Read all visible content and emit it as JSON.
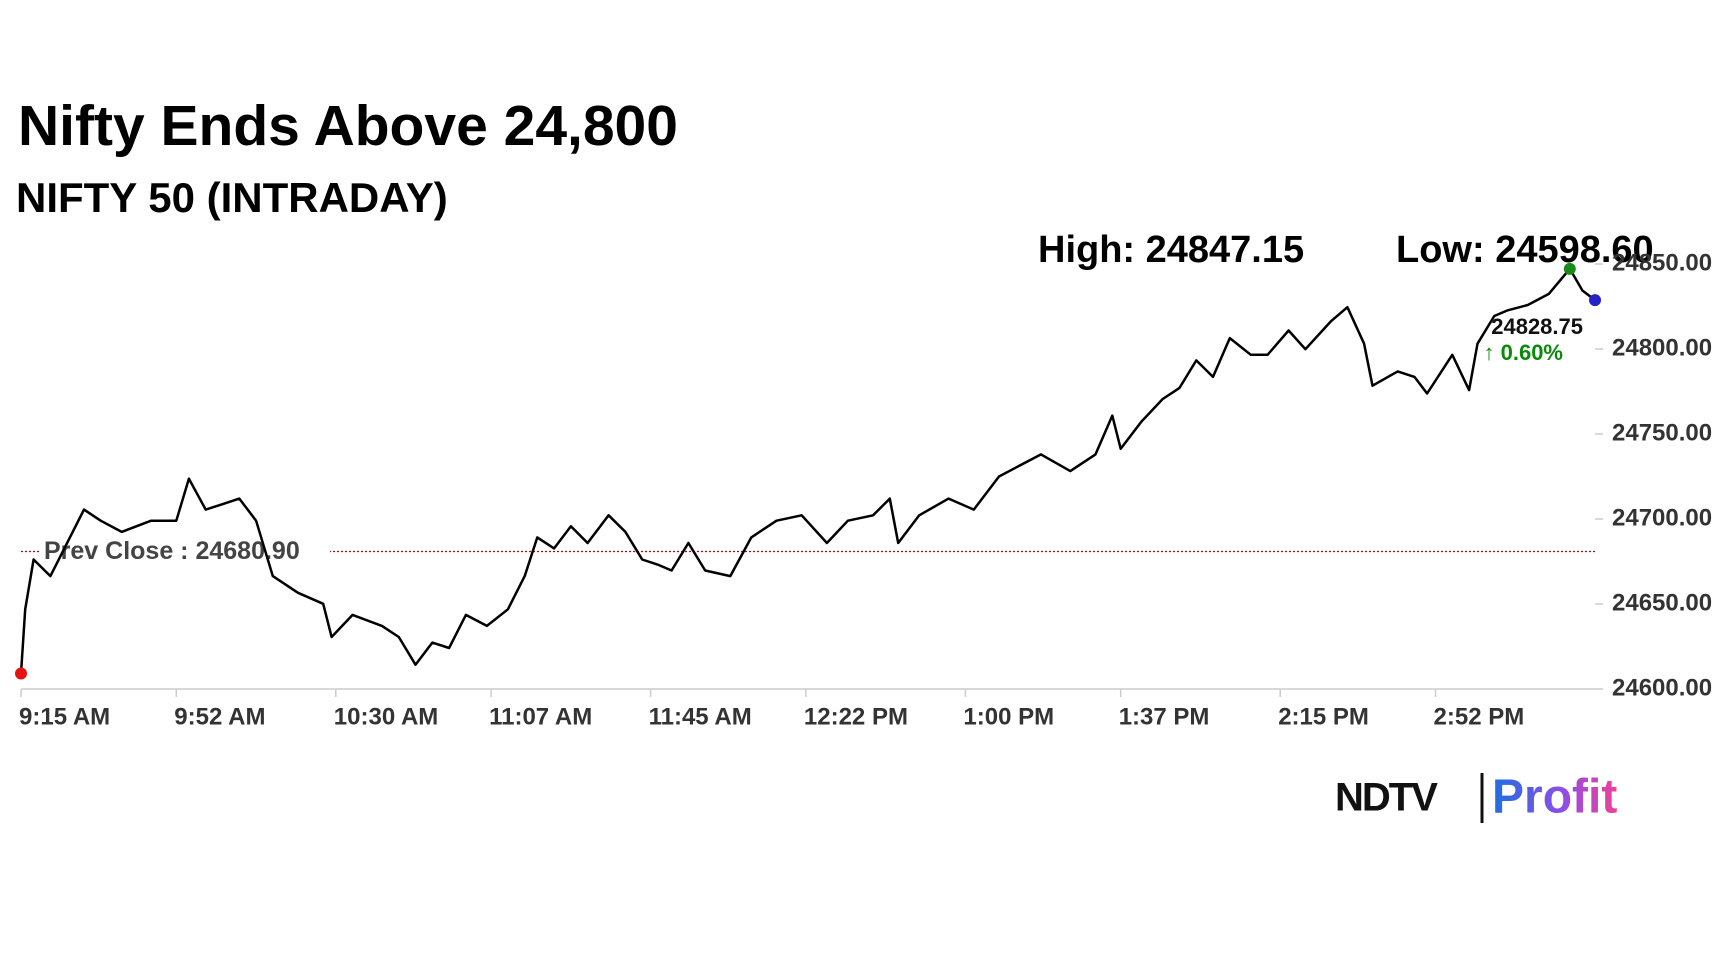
{
  "chart_data": {
    "type": "line",
    "title": "Nifty Ends Above 24,800",
    "subtitle": "NIFTY 50 (INTRADAY)",
    "high_label": "High: 24847.15",
    "low_label": "Low: 24598.60",
    "last_label": "24828.75",
    "change_label": "↑ 0.60%",
    "prev_close": {
      "value": 24680.9,
      "label": "Prev Close : 24680.90"
    },
    "color": "#000000",
    "start_color": "#e81010",
    "high_color": "#1a8a1a",
    "end_color": "#2323c8",
    "prev_close_color": "#a01010",
    "change_color": "#0a8a0a",
    "x": [
      555,
      556,
      558,
      562,
      570,
      574,
      579,
      586,
      592,
      595,
      599,
      603,
      607,
      611,
      615,
      621,
      627,
      629,
      634,
      641,
      645,
      649,
      653,
      657,
      661,
      666,
      671,
      675,
      678,
      682,
      686,
      690,
      695,
      699,
      703,
      707,
      710,
      714,
      718,
      724,
      729,
      735,
      741,
      747,
      752,
      758,
      762,
      764,
      769,
      776,
      782,
      788,
      793,
      798,
      805,
      811,
      815,
      817,
      822,
      827,
      831,
      835,
      839,
      843,
      848,
      852,
      857,
      861,
      867,
      871,
      875,
      877,
      883,
      887,
      890,
      896,
      900,
      902,
      906,
      909,
      914,
      919,
      924,
      927,
      930
    ],
    "values": [
      24609.1,
      24646.9,
      24676.2,
      24666.4,
      24705.5,
      24699.0,
      24692.4,
      24699.0,
      24699.0,
      24723.7,
      24705.5,
      24708.7,
      24712.0,
      24699.0,
      24666.4,
      24656.6,
      24650.1,
      24630.6,
      24643.6,
      24637.1,
      24630.6,
      24614.3,
      24627.3,
      24624.1,
      24643.6,
      24637.1,
      24646.9,
      24666.4,
      24689.2,
      24682.7,
      24695.7,
      24685.9,
      24702.2,
      24692.4,
      24676.2,
      24672.9,
      24669.7,
      24685.9,
      24669.7,
      24666.4,
      24689.2,
      24699.0,
      24702.2,
      24685.9,
      24699.0,
      24702.2,
      24712.0,
      24685.9,
      24702.2,
      24712.0,
      24705.5,
      24725.0,
      24731.5,
      24738.0,
      24728.2,
      24738.0,
      24760.8,
      24741.3,
      24757.5,
      24770.6,
      24777.1,
      24793.3,
      24783.6,
      24806.4,
      24796.6,
      24796.6,
      24810.9,
      24799.9,
      24816.1,
      24824.6,
      24803.1,
      24778.4,
      24786.8,
      24783.6,
      24773.8,
      24796.6,
      24775.8,
      24803.1,
      24819.4,
      24822.6,
      24825.9,
      24832.4,
      24847.15,
      24834.4,
      24828.75
    ],
    "xlim": [
      555,
      930
    ],
    "ylim": [
      24600,
      24850
    ],
    "xticks": [
      {
        "value": 555,
        "label": "9:15 AM"
      },
      {
        "value": 592,
        "label": "9:52 AM"
      },
      {
        "value": 630,
        "label": "10:30 AM"
      },
      {
        "value": 667,
        "label": "11:07 AM"
      },
      {
        "value": 705,
        "label": "11:45 AM"
      },
      {
        "value": 742,
        "label": "12:22 PM"
      },
      {
        "value": 780,
        "label": "1:00 PM"
      },
      {
        "value": 817,
        "label": "1:37 PM"
      },
      {
        "value": 855,
        "label": "2:15 PM"
      },
      {
        "value": 892,
        "label": "2:52 PM"
      }
    ],
    "yticks": [
      {
        "value": 24600,
        "label": "24600.00"
      },
      {
        "value": 24650,
        "label": "24650.00"
      },
      {
        "value": 24700,
        "label": "24700.00"
      },
      {
        "value": 24750,
        "label": "24750.00"
      },
      {
        "value": 24800,
        "label": "24800.00"
      },
      {
        "value": 24850,
        "label": "24850.00"
      }
    ]
  },
  "logo": {
    "left": "NDTV",
    "right": "Profit"
  }
}
